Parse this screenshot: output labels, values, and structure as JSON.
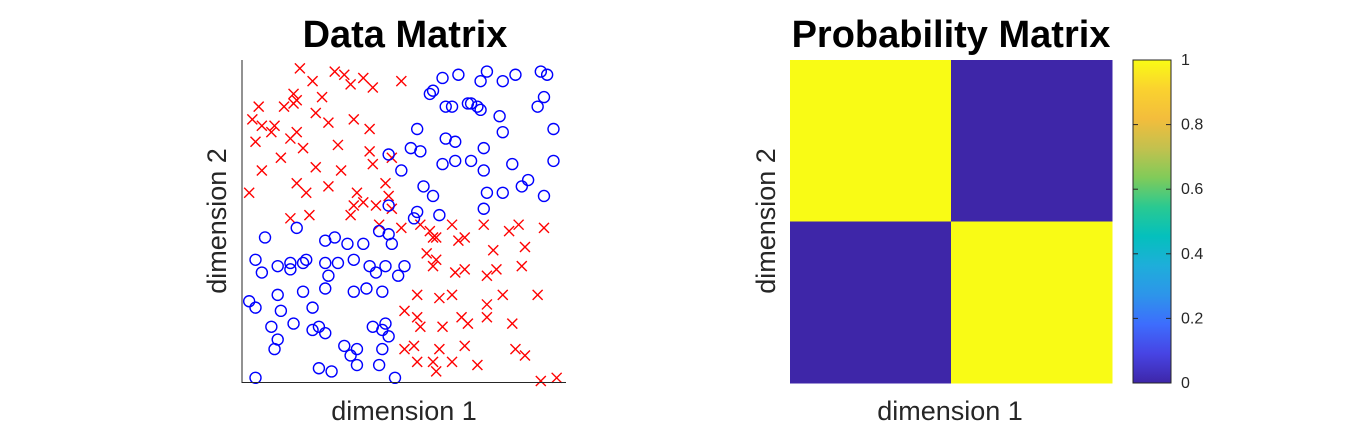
{
  "chart_data": [
    {
      "type": "scatter",
      "title": "Data Matrix",
      "xlabel": "dimension 1",
      "ylabel": "dimension 2",
      "xlim": [
        0,
        1
      ],
      "ylim": [
        0,
        1
      ],
      "ticks_shown": false,
      "grid": false,
      "series": [
        {
          "marker": "x",
          "color": "#ff0000",
          "points": [
            [
              0.17,
              0.98
            ],
            [
              0.28,
              0.97
            ],
            [
              0.31,
              0.96
            ],
            [
              0.37,
              0.95
            ],
            [
              0.49,
              0.94
            ],
            [
              0.21,
              0.94
            ],
            [
              0.33,
              0.93
            ],
            [
              0.4,
              0.92
            ],
            [
              0.15,
              0.9
            ],
            [
              0.16,
              0.88
            ],
            [
              0.24,
              0.89
            ],
            [
              0.04,
              0.86
            ],
            [
              0.15,
              0.87
            ],
            [
              0.12,
              0.86
            ],
            [
              0.22,
              0.84
            ],
            [
              0.34,
              0.82
            ],
            [
              0.02,
              0.82
            ],
            [
              0.05,
              0.8
            ],
            [
              0.09,
              0.8
            ],
            [
              0.26,
              0.81
            ],
            [
              0.16,
              0.78
            ],
            [
              0.39,
              0.79
            ],
            [
              0.08,
              0.78
            ],
            [
              0.14,
              0.76
            ],
            [
              0.03,
              0.75
            ],
            [
              0.18,
              0.73
            ],
            [
              0.29,
              0.74
            ],
            [
              0.11,
              0.7
            ],
            [
              0.39,
              0.72
            ],
            [
              0.46,
              0.7
            ],
            [
              0.22,
              0.67
            ],
            [
              0.3,
              0.66
            ],
            [
              0.05,
              0.66
            ],
            [
              0.4,
              0.68
            ],
            [
              0.44,
              0.62
            ],
            [
              0.16,
              0.62
            ],
            [
              0.26,
              0.61
            ],
            [
              0.19,
              0.59
            ],
            [
              0.35,
              0.59
            ],
            [
              0.01,
              0.59
            ],
            [
              0.45,
              0.58
            ],
            [
              0.41,
              0.55
            ],
            [
              0.37,
              0.56
            ],
            [
              0.34,
              0.55
            ],
            [
              0.46,
              0.54
            ],
            [
              0.55,
              0.49
            ],
            [
              0.14,
              0.51
            ],
            [
              0.33,
              0.52
            ],
            [
              0.49,
              0.48
            ],
            [
              0.2,
              0.52
            ],
            [
              0.42,
              0.49
            ],
            [
              0.58,
              0.47
            ],
            [
              0.86,
              0.49
            ],
            [
              0.94,
              0.48
            ],
            [
              0.6,
              0.45
            ],
            [
              0.65,
              0.49
            ],
            [
              0.69,
              0.45
            ],
            [
              0.75,
              0.49
            ],
            [
              0.83,
              0.47
            ],
            [
              0.59,
              0.45
            ],
            [
              0.67,
              0.44
            ],
            [
              0.78,
              0.41
            ],
            [
              0.88,
              0.42
            ],
            [
              0.6,
              0.38
            ],
            [
              0.69,
              0.35
            ],
            [
              0.57,
              0.4
            ],
            [
              0.59,
              0.36
            ],
            [
              0.66,
              0.34
            ],
            [
              0.79,
              0.35
            ],
            [
              0.87,
              0.36
            ],
            [
              0.76,
              0.33
            ],
            [
              0.61,
              0.26
            ],
            [
              0.65,
              0.27
            ],
            [
              0.54,
              0.27
            ],
            [
              0.81,
              0.27
            ],
            [
              0.92,
              0.27
            ],
            [
              0.76,
              0.24
            ],
            [
              0.68,
              0.2
            ],
            [
              0.7,
              0.18
            ],
            [
              0.5,
              0.22
            ],
            [
              0.54,
              0.2
            ],
            [
              0.62,
              0.17
            ],
            [
              0.76,
              0.2
            ],
            [
              0.84,
              0.18
            ],
            [
              0.55,
              0.17
            ],
            [
              0.69,
              0.11
            ],
            [
              0.53,
              0.11
            ],
            [
              0.61,
              0.1
            ],
            [
              0.85,
              0.1
            ],
            [
              0.5,
              0.1
            ],
            [
              0.54,
              0.06
            ],
            [
              0.59,
              0.06
            ],
            [
              0.65,
              0.06
            ],
            [
              0.73,
              0.05
            ],
            [
              0.88,
              0.08
            ],
            [
              0.6,
              0.03
            ],
            [
              0.93,
              0.0
            ],
            [
              0.98,
              0.01
            ]
          ]
        },
        {
          "marker": "o",
          "color": "#0000ff",
          "points": [
            [
              0.93,
              0.97
            ],
            [
              0.95,
              0.96
            ],
            [
              0.76,
              0.97
            ],
            [
              0.62,
              0.95
            ],
            [
              0.85,
              0.96
            ],
            [
              0.67,
              0.96
            ],
            [
              0.81,
              0.94
            ],
            [
              0.74,
              0.94
            ],
            [
              0.59,
              0.91
            ],
            [
              0.58,
              0.9
            ],
            [
              0.7,
              0.87
            ],
            [
              0.94,
              0.89
            ],
            [
              0.73,
              0.86
            ],
            [
              0.71,
              0.87
            ],
            [
              0.74,
              0.85
            ],
            [
              0.92,
              0.86
            ],
            [
              0.63,
              0.86
            ],
            [
              0.65,
              0.86
            ],
            [
              0.8,
              0.83
            ],
            [
              0.54,
              0.79
            ],
            [
              0.97,
              0.79
            ],
            [
              0.81,
              0.78
            ],
            [
              0.63,
              0.76
            ],
            [
              0.66,
              0.75
            ],
            [
              0.75,
              0.73
            ],
            [
              0.52,
              0.73
            ],
            [
              0.55,
              0.72
            ],
            [
              0.45,
              0.71
            ],
            [
              0.66,
              0.69
            ],
            [
              0.62,
              0.68
            ],
            [
              0.71,
              0.69
            ],
            [
              0.84,
              0.68
            ],
            [
              0.97,
              0.69
            ],
            [
              0.49,
              0.66
            ],
            [
              0.75,
              0.66
            ],
            [
              0.89,
              0.63
            ],
            [
              0.56,
              0.61
            ],
            [
              0.87,
              0.61
            ],
            [
              0.59,
              0.58
            ],
            [
              0.76,
              0.59
            ],
            [
              0.81,
              0.59
            ],
            [
              0.75,
              0.54
            ],
            [
              0.45,
              0.55
            ],
            [
              0.54,
              0.53
            ],
            [
              0.61,
              0.52
            ],
            [
              0.53,
              0.51
            ],
            [
              0.94,
              0.58
            ],
            [
              0.16,
              0.48
            ],
            [
              0.42,
              0.47
            ],
            [
              0.45,
              0.46
            ],
            [
              0.28,
              0.45
            ],
            [
              0.25,
              0.44
            ],
            [
              0.06,
              0.45
            ],
            [
              0.32,
              0.43
            ],
            [
              0.37,
              0.43
            ],
            [
              0.46,
              0.43
            ],
            [
              0.25,
              0.37
            ],
            [
              0.34,
              0.38
            ],
            [
              0.14,
              0.37
            ],
            [
              0.18,
              0.37
            ],
            [
              0.19,
              0.38
            ],
            [
              0.03,
              0.38
            ],
            [
              0.1,
              0.36
            ],
            [
              0.44,
              0.36
            ],
            [
              0.14,
              0.35
            ],
            [
              0.05,
              0.34
            ],
            [
              0.41,
              0.34
            ],
            [
              0.39,
              0.36
            ],
            [
              0.29,
              0.37
            ],
            [
              0.26,
              0.33
            ],
            [
              0.48,
              0.33
            ],
            [
              0.5,
              0.36
            ],
            [
              0.34,
              0.28
            ],
            [
              0.38,
              0.29
            ],
            [
              0.25,
              0.29
            ],
            [
              0.1,
              0.27
            ],
            [
              0.18,
              0.28
            ],
            [
              0.43,
              0.28
            ],
            [
              0.01,
              0.25
            ],
            [
              0.03,
              0.23
            ],
            [
              0.21,
              0.23
            ],
            [
              0.11,
              0.22
            ],
            [
              0.4,
              0.17
            ],
            [
              0.44,
              0.18
            ],
            [
              0.43,
              0.16
            ],
            [
              0.21,
              0.16
            ],
            [
              0.23,
              0.17
            ],
            [
              0.25,
              0.15
            ],
            [
              0.08,
              0.17
            ],
            [
              0.1,
              0.13
            ],
            [
              0.09,
              0.1
            ],
            [
              0.31,
              0.11
            ],
            [
              0.35,
              0.1
            ],
            [
              0.33,
              0.08
            ],
            [
              0.43,
              0.1
            ],
            [
              0.45,
              0.14
            ],
            [
              0.35,
              0.05
            ],
            [
              0.42,
              0.05
            ],
            [
              0.23,
              0.04
            ],
            [
              0.27,
              0.03
            ],
            [
              0.47,
              0.01
            ],
            [
              0.03,
              0.01
            ],
            [
              0.15,
              0.18
            ]
          ]
        }
      ]
    },
    {
      "type": "heatmap",
      "title": "Probability Matrix",
      "xlabel": "dimension 1",
      "ylabel": "dimension 2",
      "rows": 2,
      "cols": 2,
      "values": [
        [
          1,
          0
        ],
        [
          0,
          1
        ]
      ],
      "colorbar": {
        "range": [
          0,
          1
        ],
        "ticks": [
          "0",
          "0.2",
          "0.4",
          "0.6",
          "0.8",
          "1"
        ],
        "colormap": [
          "#3e26a8",
          "#4744e4",
          "#3d6dfd",
          "#2d95ea",
          "#1eaeda",
          "#04c0bd",
          "#2ac991",
          "#81cb59",
          "#c3c14e",
          "#f3bd3c",
          "#fad22f",
          "#f9fb15"
        ]
      }
    }
  ]
}
